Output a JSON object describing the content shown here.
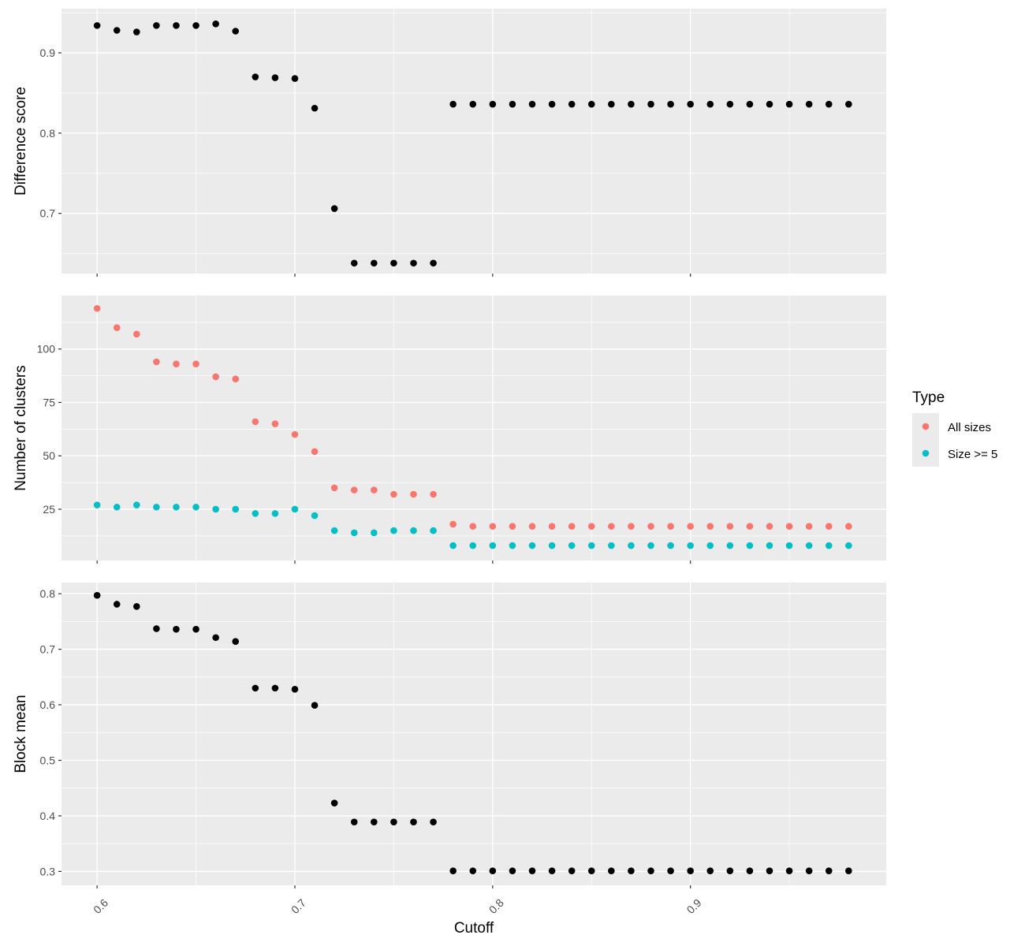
{
  "chart_data": [
    {
      "type": "scatter",
      "ylabel": "Difference score",
      "ylim": [
        0.625,
        0.955
      ],
      "yticks": [
        0.7,
        0.8,
        0.9
      ],
      "ytick_labels": [
        "0.7",
        "0.8",
        "0.9"
      ],
      "color": "#000000",
      "x": [
        0.6,
        0.61,
        0.62,
        0.63,
        0.64,
        0.65,
        0.66,
        0.67,
        0.68,
        0.69,
        0.7,
        0.71,
        0.72,
        0.73,
        0.74,
        0.75,
        0.76,
        0.77,
        0.78,
        0.79,
        0.8,
        0.81,
        0.82,
        0.83,
        0.84,
        0.85,
        0.86,
        0.87,
        0.88,
        0.89,
        0.9,
        0.91,
        0.92,
        0.93,
        0.94,
        0.95,
        0.96,
        0.97,
        0.98
      ],
      "y": [
        0.934,
        0.928,
        0.926,
        0.934,
        0.934,
        0.934,
        0.936,
        0.927,
        0.87,
        0.869,
        0.868,
        0.831,
        0.706,
        0.638,
        0.638,
        0.638,
        0.638,
        0.638,
        0.836,
        0.836,
        0.836,
        0.836,
        0.836,
        0.836,
        0.836,
        0.836,
        0.836,
        0.836,
        0.836,
        0.836,
        0.836,
        0.836,
        0.836,
        0.836,
        0.836,
        0.836,
        0.836,
        0.836,
        0.836
      ]
    },
    {
      "type": "scatter",
      "ylabel": "Number of clusters",
      "ylim": [
        1,
        125
      ],
      "yticks": [
        25,
        50,
        75,
        100
      ],
      "ytick_labels": [
        "25",
        "50",
        "75",
        "100"
      ],
      "legend_title": "Type",
      "legend_position": "right",
      "x": [
        0.6,
        0.61,
        0.62,
        0.63,
        0.64,
        0.65,
        0.66,
        0.67,
        0.68,
        0.69,
        0.7,
        0.71,
        0.72,
        0.73,
        0.74,
        0.75,
        0.76,
        0.77,
        0.78,
        0.79,
        0.8,
        0.81,
        0.82,
        0.83,
        0.84,
        0.85,
        0.86,
        0.87,
        0.88,
        0.89,
        0.9,
        0.91,
        0.92,
        0.93,
        0.94,
        0.95,
        0.96,
        0.97,
        0.98
      ],
      "series": [
        {
          "name": "All sizes",
          "color": "#F8766D",
          "values": [
            119,
            110,
            107,
            94,
            93,
            93,
            87,
            86,
            66,
            65,
            60,
            52,
            35,
            34,
            34,
            32,
            32,
            32,
            18,
            17,
            17,
            17,
            17,
            17,
            17,
            17,
            17,
            17,
            17,
            17,
            17,
            17,
            17,
            17,
            17,
            17,
            17,
            17,
            17
          ]
        },
        {
          "name": "Size >= 5",
          "color": "#00BFC4",
          "values": [
            27,
            26,
            27,
            26,
            26,
            26,
            25,
            25,
            23,
            23,
            25,
            22,
            15,
            14,
            14,
            15,
            15,
            15,
            8,
            8,
            8,
            8,
            8,
            8,
            8,
            8,
            8,
            8,
            8,
            8,
            8,
            8,
            8,
            8,
            8,
            8,
            8,
            8,
            8
          ]
        }
      ]
    },
    {
      "type": "scatter",
      "ylabel": "Block mean",
      "xlabel": "Cutoff",
      "ylim": [
        0.275,
        0.82
      ],
      "yticks": [
        0.3,
        0.4,
        0.5,
        0.6,
        0.7,
        0.8
      ],
      "ytick_labels": [
        "0.3",
        "0.4",
        "0.5",
        "0.6",
        "0.7",
        "0.8"
      ],
      "color": "#000000",
      "x": [
        0.6,
        0.61,
        0.62,
        0.63,
        0.64,
        0.65,
        0.66,
        0.67,
        0.68,
        0.69,
        0.7,
        0.71,
        0.72,
        0.73,
        0.74,
        0.75,
        0.76,
        0.77,
        0.78,
        0.79,
        0.8,
        0.81,
        0.82,
        0.83,
        0.84,
        0.85,
        0.86,
        0.87,
        0.88,
        0.89,
        0.9,
        0.91,
        0.92,
        0.93,
        0.94,
        0.95,
        0.96,
        0.97,
        0.98
      ],
      "y": [
        0.797,
        0.781,
        0.777,
        0.737,
        0.736,
        0.736,
        0.721,
        0.714,
        0.63,
        0.63,
        0.628,
        0.599,
        0.423,
        0.389,
        0.389,
        0.389,
        0.389,
        0.389,
        0.301,
        0.301,
        0.301,
        0.301,
        0.301,
        0.301,
        0.301,
        0.301,
        0.301,
        0.301,
        0.301,
        0.301,
        0.301,
        0.301,
        0.301,
        0.301,
        0.301,
        0.301,
        0.301,
        0.301,
        0.301
      ]
    }
  ],
  "x_axis": {
    "xlim": [
      0.582,
      0.999
    ],
    "ticks": [
      0.6,
      0.7,
      0.8,
      0.9
    ],
    "tick_labels": [
      "0.6",
      "0.7",
      "0.8",
      "0.9"
    ],
    "label": "Cutoff"
  },
  "legend": {
    "title": "Type",
    "entries": [
      {
        "label": "All sizes",
        "color": "#F8766D"
      },
      {
        "label": "Size >= 5",
        "color": "#00BFC4"
      }
    ]
  }
}
